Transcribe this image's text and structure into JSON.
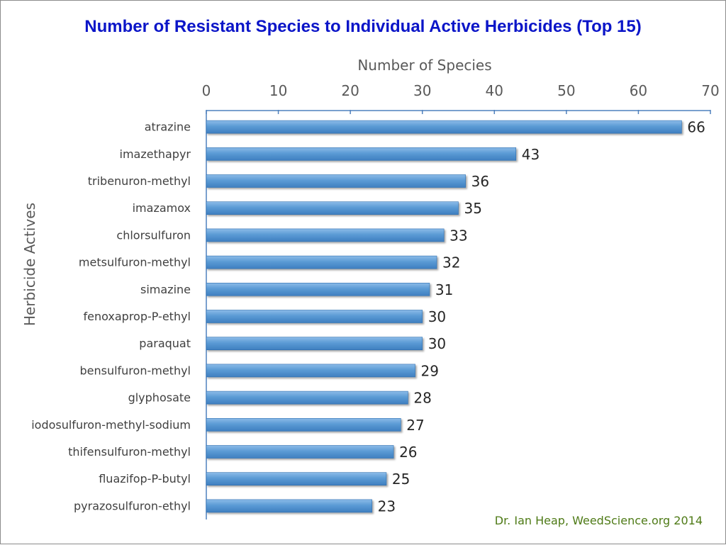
{
  "chart_data": {
    "type": "bar",
    "orientation": "horizontal",
    "title": "Number of Resistant Species to Individual Active Herbicides (Top 15)",
    "xlabel": "Number of Species",
    "ylabel": "Herbicide Actives",
    "xlim": [
      0,
      70
    ],
    "x_ticks": [
      "0",
      "10",
      "20",
      "30",
      "40",
      "50",
      "60",
      "70"
    ],
    "x_axis_position": "top",
    "categories": [
      "atrazine",
      "imazethapyr",
      "tribenuron-methyl",
      "imazamox",
      "chlorsulfuron",
      "metsulfuron-methyl",
      "simazine",
      "fenoxaprop-P-ethyl",
      "paraquat",
      "bensulfuron-methyl",
      "glyphosate",
      "iodosulfuron-methyl-sodium",
      "thifensulfuron-methyl",
      "fluazifop-P-butyl",
      "pyrazosulfuron-ethyl"
    ],
    "values": [
      66,
      43,
      36,
      35,
      33,
      32,
      31,
      30,
      30,
      29,
      28,
      27,
      26,
      25,
      23
    ],
    "data_labels": true,
    "grid": false,
    "legend": "none",
    "bar_color": "#5b9bd5",
    "annotation": "Dr. Ian Heap, WeedScience.org  2014"
  },
  "colors": {
    "title": "#0b15c8",
    "bar": "#5b9bd5",
    "bar_dark": "#2e6fb0",
    "axis_line": "#4f81bd",
    "credit": "#4e7a16"
  }
}
